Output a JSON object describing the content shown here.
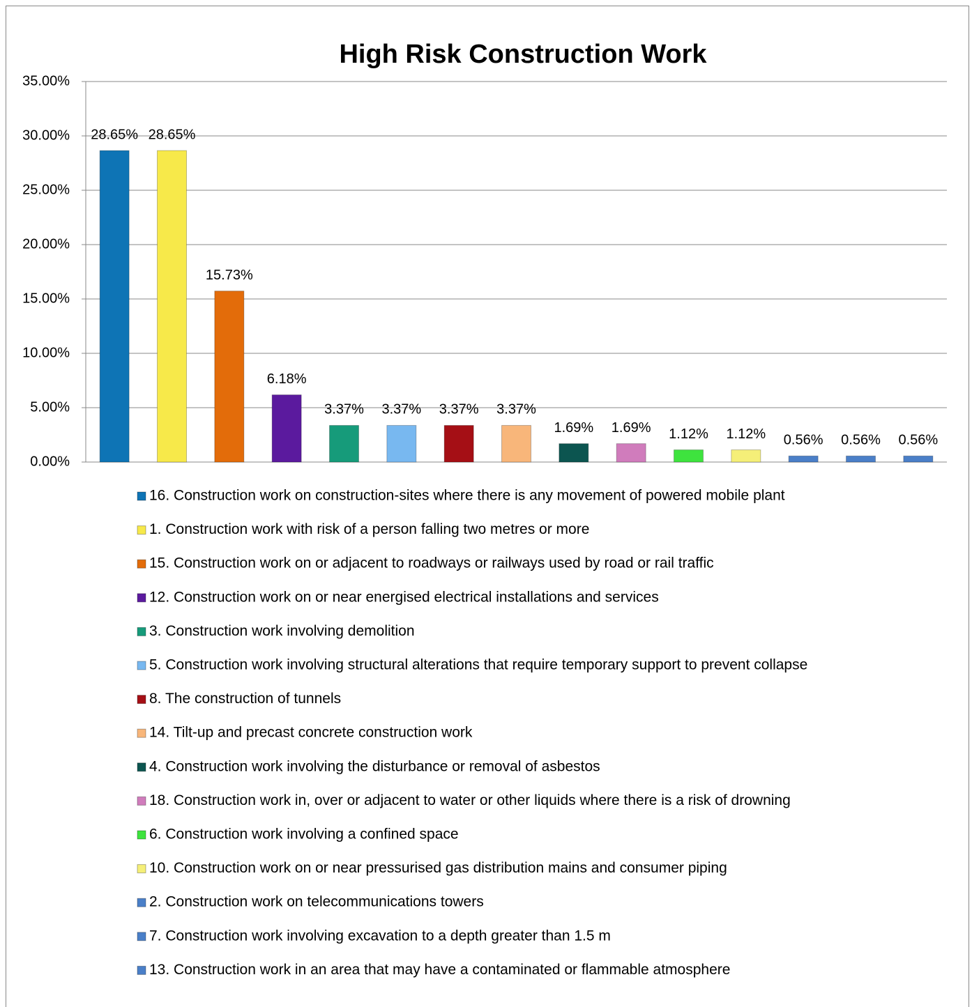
{
  "chart_data": {
    "type": "bar",
    "title": "High Risk Construction Work",
    "ylim": [
      0,
      35
    ],
    "yticks": [
      {
        "value": 0,
        "label": "0.00%"
      },
      {
        "value": 5,
        "label": "5.00%"
      },
      {
        "value": 10,
        "label": "10.00%"
      },
      {
        "value": 15,
        "label": "15.00%"
      },
      {
        "value": 20,
        "label": "20.00%"
      },
      {
        "value": 25,
        "label": "25.00%"
      },
      {
        "value": 30,
        "label": "30.00%"
      },
      {
        "value": 35,
        "label": "35.00%"
      }
    ],
    "grid": true,
    "legend": "bottom",
    "series": [
      {
        "name": "16. Construction work on construction-sites where there is any movement of powered mobile plant",
        "color": "#0e74b5",
        "values": [
          28.65
        ],
        "value_labels": [
          "28.65%"
        ]
      },
      {
        "name": "1. Construction work with risk of a person falling two metres or more",
        "color": "#f7e94a",
        "values": [
          28.65
        ],
        "value_labels": [
          "28.65%"
        ]
      },
      {
        "name": "15. Construction work on or adjacent to roadways or railways used by road or rail traffic",
        "color": "#e36c0a",
        "values": [
          15.73
        ],
        "value_labels": [
          "15.73%"
        ]
      },
      {
        "name": "12. Construction work on or near energised electrical installations and services",
        "color": "#5b1a9e",
        "values": [
          6.18
        ],
        "value_labels": [
          "6.18%"
        ]
      },
      {
        "name": "3. Construction work involving demolition",
        "color": "#169b7a",
        "values": [
          3.37
        ],
        "value_labels": [
          "3.37%"
        ]
      },
      {
        "name": "5. Construction work involving structural alterations that require temporary support to prevent collapse",
        "color": "#78b8f0",
        "values": [
          3.37
        ],
        "value_labels": [
          "3.37%"
        ]
      },
      {
        "name": "8. The construction of tunnels",
        "color": "#a50f15",
        "values": [
          3.37
        ],
        "value_labels": [
          "3.37%"
        ]
      },
      {
        "name": "14. Tilt-up and precast concrete construction work",
        "color": "#f8b67a",
        "values": [
          3.37
        ],
        "value_labels": [
          "3.37%"
        ]
      },
      {
        "name": "4. Construction work involving the disturbance or removal of asbestos",
        "color": "#0c5550",
        "values": [
          1.69
        ],
        "value_labels": [
          "1.69%"
        ]
      },
      {
        "name": "18. Construction work in, over or adjacent to water or other liquids where there is a risk of drowning",
        "color": "#d07cbc",
        "values": [
          1.69
        ],
        "value_labels": [
          "1.69%"
        ]
      },
      {
        "name": "6. Construction work involving a confined space",
        "color": "#3ee33e",
        "values": [
          1.12
        ],
        "value_labels": [
          "1.12%"
        ]
      },
      {
        "name": "10. Construction work on or near pressurised gas distribution mains and consumer piping",
        "color": "#f5ef78",
        "values": [
          1.12
        ],
        "value_labels": [
          "1.12%"
        ]
      },
      {
        "name": "2. Construction work on telecommunications towers",
        "color": "#4a7fc8",
        "values": [
          0.56
        ],
        "value_labels": [
          "0.56%"
        ]
      },
      {
        "name": "7. Construction work involving excavation to a depth greater than 1.5 m",
        "color": "#4a7fc8",
        "values": [
          0.56
        ],
        "value_labels": [
          "0.56%"
        ]
      },
      {
        "name": "13. Construction work in an area that may have a contaminated or flammable atmosphere",
        "color": "#4a7fc8",
        "values": [
          0.56
        ],
        "value_labels": [
          "0.56%"
        ]
      }
    ]
  }
}
